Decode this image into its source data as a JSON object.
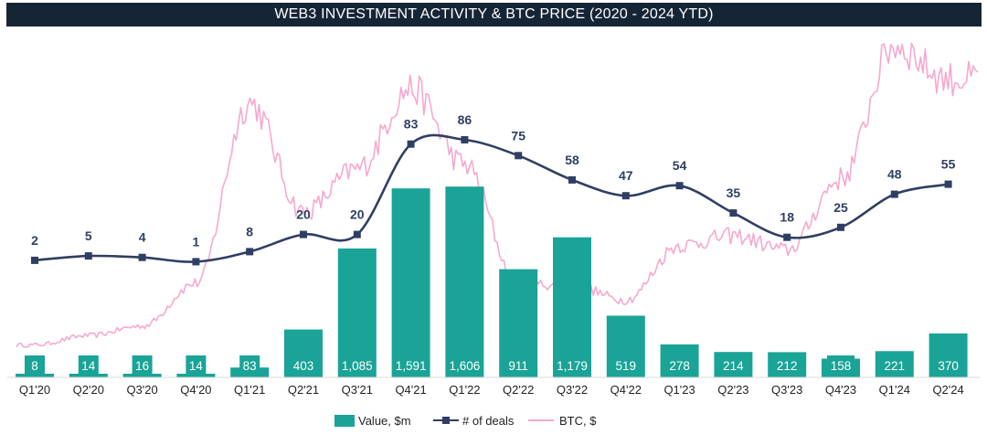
{
  "chart_data": {
    "type": "bar",
    "title": "WEB3 INVESTMENT ACTIVITY & BTC PRICE (2020 - 2024 YTD)",
    "categories": [
      "Q1'20",
      "Q2'20",
      "Q3'20",
      "Q4'20",
      "Q1'21",
      "Q2'21",
      "Q3'21",
      "Q4'21",
      "Q1'22",
      "Q2'22",
      "Q3'22",
      "Q4'22",
      "Q1'23",
      "Q2'23",
      "Q3'23",
      "Q4'23",
      "Q1'24",
      "Q2'24"
    ],
    "series": [
      {
        "name": "Value, $m",
        "type": "bar",
        "color": "#1aa397",
        "values": [
          8,
          14,
          16,
          14,
          83,
          403,
          1085,
          1591,
          1606,
          911,
          1179,
          519,
          278,
          214,
          212,
          158,
          221,
          370
        ],
        "labels": [
          "8",
          "14",
          "16",
          "14",
          "83",
          "403",
          "1,085",
          "1,591",
          "1,606",
          "911",
          "1,179",
          "519",
          "278",
          "214",
          "212",
          "158",
          "221",
          "370"
        ]
      },
      {
        "name": "# of deals",
        "type": "line",
        "color": "#2f3f63",
        "values": [
          2,
          5,
          4,
          1,
          8,
          20,
          20,
          83,
          86,
          75,
          58,
          47,
          54,
          35,
          18,
          25,
          48,
          55
        ]
      },
      {
        "name": "BTC, $",
        "type": "line",
        "color": "#f7a8cf",
        "values": [
          7000,
          9000,
          11000,
          20000,
          58000,
          35000,
          44000,
          61000,
          45000,
          20000,
          19500,
          16500,
          28000,
          30000,
          27000,
          42000,
          70000,
          63000
        ]
      }
    ],
    "legend_position": "bottom-center",
    "grid": false
  },
  "legend": {
    "value": "Value, $m",
    "deals": "# of deals",
    "btc": "BTC, $"
  }
}
